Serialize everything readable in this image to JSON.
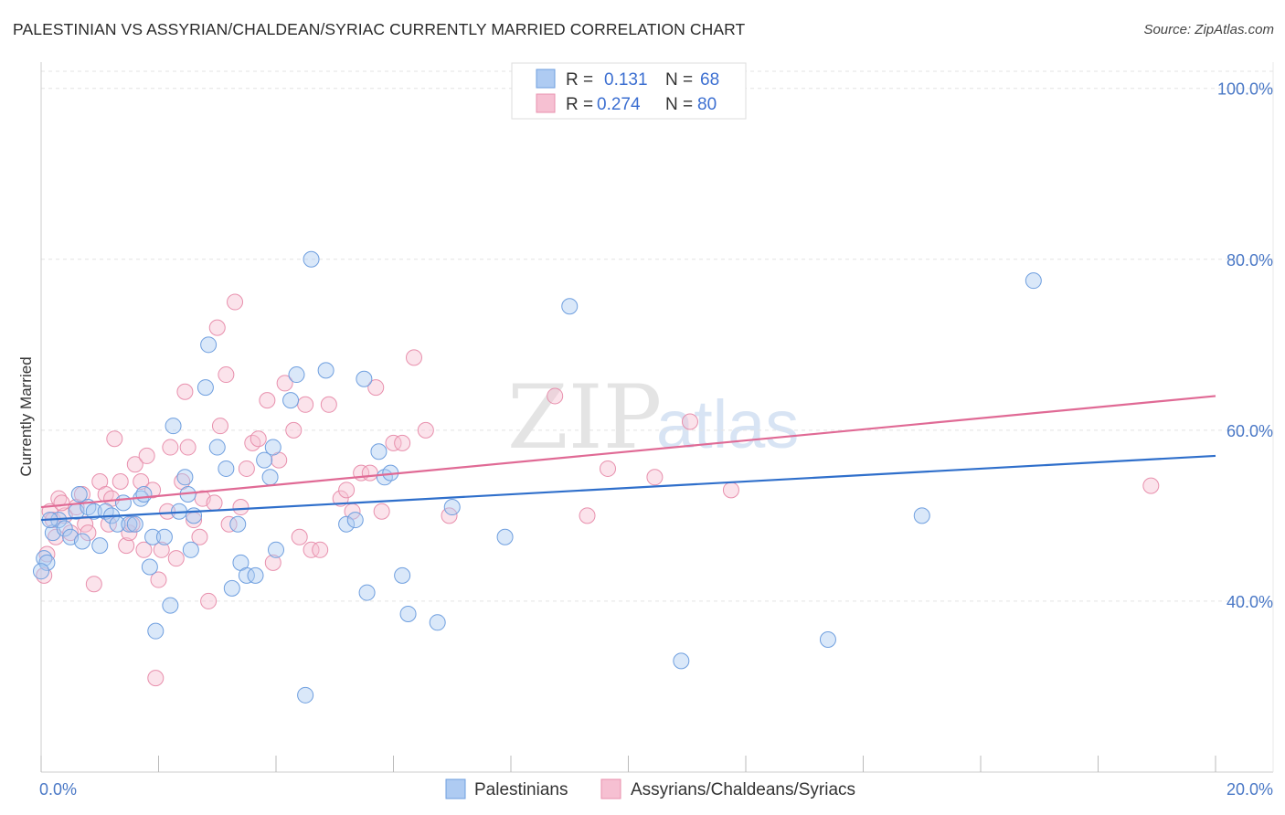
{
  "title": "PALESTINIAN VS ASSYRIAN/CHALDEAN/SYRIAC CURRENTLY MARRIED CORRELATION CHART",
  "source": "Source: ZipAtlas.com",
  "watermark": {
    "zip": "ZIP",
    "atlas": "atlas"
  },
  "colors": {
    "blue_fill": "#aecbf2",
    "blue_stroke": "#6f9fdf",
    "blue_line": "#2f6fcb",
    "pink_fill": "#f6c0d2",
    "pink_stroke": "#e890ad",
    "pink_line": "#e06a95",
    "tick_label": "#4a78c6",
    "grid": "#e3e3e3"
  },
  "legend": {
    "rows": [
      {
        "r_label": "R =",
        "r_value": "0.131",
        "n_label": "N =",
        "n_value": "68"
      },
      {
        "r_label": "R =",
        "r_value": "0.274",
        "n_label": "N =",
        "n_value": "80"
      }
    ]
  },
  "bottom_legend": [
    "Palestinians",
    "Assyrians/Chaldeans/Syriacs"
  ],
  "chart_data": {
    "type": "scatter",
    "title": "PALESTINIAN VS ASSYRIAN/CHALDEAN/SYRIAC CURRENTLY MARRIED CORRELATION CHART",
    "xlabel": "",
    "ylabel": "Currently Married",
    "xlim": [
      0,
      20
    ],
    "ylim": [
      20,
      102
    ],
    "x_tick_labels": [
      "0.0%",
      "20.0%"
    ],
    "y_ticks": [
      40,
      60,
      80,
      100
    ],
    "y_tick_labels": [
      "40.0%",
      "60.0%",
      "80.0%",
      "100.0%"
    ],
    "grid": true,
    "series": [
      {
        "name": "Palestinians",
        "r": 0.131,
        "n": 68,
        "trend": {
          "x0": 0,
          "y0": 49.5,
          "x1": 20,
          "y1": 57.0
        },
        "points": [
          [
            0.05,
            45.0
          ],
          [
            0.1,
            44.5
          ],
          [
            0.2,
            48.0
          ],
          [
            0.3,
            49.5
          ],
          [
            0.4,
            48.5
          ],
          [
            0.5,
            47.5
          ],
          [
            0.6,
            50.5
          ],
          [
            0.65,
            52.5
          ],
          [
            0.7,
            47.0
          ],
          [
            0.8,
            51.0
          ],
          [
            0.9,
            50.5
          ],
          [
            1.0,
            46.5
          ],
          [
            1.1,
            50.5
          ],
          [
            1.2,
            50.0
          ],
          [
            1.3,
            49.0
          ],
          [
            1.4,
            51.5
          ],
          [
            1.5,
            49.0
          ],
          [
            1.6,
            49.0
          ],
          [
            1.7,
            52.0
          ],
          [
            1.75,
            52.5
          ],
          [
            1.85,
            44.0
          ],
          [
            1.9,
            47.5
          ],
          [
            1.95,
            36.5
          ],
          [
            2.1,
            47.5
          ],
          [
            2.2,
            39.5
          ],
          [
            2.25,
            60.5
          ],
          [
            2.35,
            50.5
          ],
          [
            2.45,
            54.5
          ],
          [
            2.5,
            52.5
          ],
          [
            2.55,
            46.0
          ],
          [
            2.6,
            50.0
          ],
          [
            2.8,
            65.0
          ],
          [
            2.85,
            70.0
          ],
          [
            3.0,
            58.0
          ],
          [
            3.15,
            55.5
          ],
          [
            3.25,
            41.5
          ],
          [
            3.35,
            49.0
          ],
          [
            3.4,
            44.5
          ],
          [
            3.5,
            43.0
          ],
          [
            3.65,
            43.0
          ],
          [
            3.8,
            56.5
          ],
          [
            3.9,
            54.5
          ],
          [
            3.95,
            58.0
          ],
          [
            4.0,
            46.0
          ],
          [
            4.25,
            63.5
          ],
          [
            4.35,
            66.5
          ],
          [
            4.5,
            29.0
          ],
          [
            4.6,
            80.0
          ],
          [
            4.85,
            67.0
          ],
          [
            5.2,
            49.0
          ],
          [
            5.35,
            49.5
          ],
          [
            5.5,
            66.0
          ],
          [
            5.55,
            41.0
          ],
          [
            5.75,
            57.5
          ],
          [
            5.85,
            54.5
          ],
          [
            5.95,
            55.0
          ],
          [
            6.15,
            43.0
          ],
          [
            6.25,
            38.5
          ],
          [
            6.75,
            37.5
          ],
          [
            7.0,
            51.0
          ],
          [
            7.9,
            47.5
          ],
          [
            9.0,
            74.5
          ],
          [
            10.9,
            33.0
          ],
          [
            13.4,
            35.5
          ],
          [
            15.0,
            50.0
          ],
          [
            16.9,
            77.5
          ],
          [
            0.0,
            43.5
          ],
          [
            0.15,
            49.5
          ]
        ]
      },
      {
        "name": "Assyrians/Chaldeans/Syriacs",
        "r": 0.274,
        "n": 80,
        "trend": {
          "x0": 0,
          "y0": 51.0,
          "x1": 20,
          "y1": 64.0
        },
        "points": [
          [
            0.05,
            43.0
          ],
          [
            0.1,
            45.5
          ],
          [
            0.15,
            50.5
          ],
          [
            0.2,
            49.5
          ],
          [
            0.3,
            52.0
          ],
          [
            0.4,
            50.0
          ],
          [
            0.5,
            48.0
          ],
          [
            0.6,
            51.0
          ],
          [
            0.7,
            52.5
          ],
          [
            0.75,
            49.0
          ],
          [
            0.8,
            48.0
          ],
          [
            0.9,
            42.0
          ],
          [
            1.0,
            54.0
          ],
          [
            1.1,
            52.5
          ],
          [
            1.2,
            52.0
          ],
          [
            1.25,
            59.0
          ],
          [
            1.35,
            54.0
          ],
          [
            1.45,
            46.5
          ],
          [
            1.5,
            48.0
          ],
          [
            1.55,
            49.0
          ],
          [
            1.6,
            56.0
          ],
          [
            1.7,
            54.0
          ],
          [
            1.75,
            46.0
          ],
          [
            1.8,
            57.0
          ],
          [
            1.9,
            53.0
          ],
          [
            1.95,
            31.0
          ],
          [
            2.0,
            42.5
          ],
          [
            2.05,
            46.0
          ],
          [
            2.15,
            50.5
          ],
          [
            2.2,
            58.0
          ],
          [
            2.3,
            45.0
          ],
          [
            2.4,
            54.0
          ],
          [
            2.45,
            64.5
          ],
          [
            2.5,
            58.0
          ],
          [
            2.6,
            49.5
          ],
          [
            2.7,
            47.5
          ],
          [
            2.75,
            52.0
          ],
          [
            2.85,
            40.0
          ],
          [
            2.95,
            51.5
          ],
          [
            3.0,
            72.0
          ],
          [
            3.05,
            60.5
          ],
          [
            3.15,
            66.5
          ],
          [
            3.2,
            49.0
          ],
          [
            3.3,
            75.0
          ],
          [
            3.4,
            51.0
          ],
          [
            3.5,
            55.5
          ],
          [
            3.6,
            58.5
          ],
          [
            3.7,
            59.0
          ],
          [
            3.85,
            63.5
          ],
          [
            3.95,
            44.5
          ],
          [
            4.05,
            56.5
          ],
          [
            4.15,
            65.5
          ],
          [
            4.3,
            60.0
          ],
          [
            4.4,
            47.5
          ],
          [
            4.5,
            63.0
          ],
          [
            4.6,
            46.0
          ],
          [
            4.75,
            46.0
          ],
          [
            4.9,
            63.0
          ],
          [
            5.1,
            52.0
          ],
          [
            5.2,
            53.0
          ],
          [
            5.3,
            50.5
          ],
          [
            5.45,
            55.0
          ],
          [
            5.6,
            55.0
          ],
          [
            5.7,
            65.0
          ],
          [
            5.8,
            50.5
          ],
          [
            6.0,
            58.5
          ],
          [
            6.15,
            58.5
          ],
          [
            6.35,
            68.5
          ],
          [
            6.55,
            60.0
          ],
          [
            6.95,
            50.0
          ],
          [
            8.75,
            64.0
          ],
          [
            9.3,
            50.0
          ],
          [
            9.65,
            55.5
          ],
          [
            10.45,
            54.5
          ],
          [
            11.05,
            61.0
          ],
          [
            11.75,
            53.0
          ],
          [
            18.9,
            53.5
          ],
          [
            0.25,
            47.5
          ],
          [
            0.35,
            51.5
          ],
          [
            1.15,
            49.0
          ]
        ]
      }
    ]
  }
}
